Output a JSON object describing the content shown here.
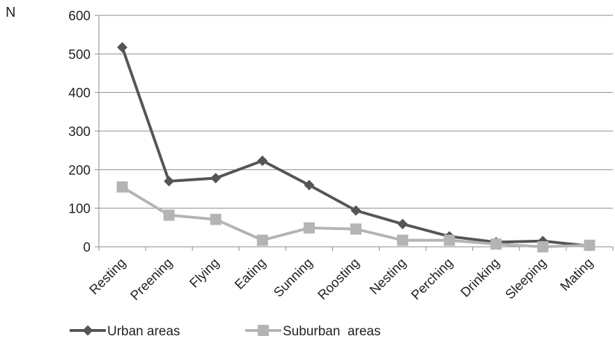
{
  "chart_data": {
    "type": "line",
    "ylabel": "N",
    "xlabel": "",
    "title": "",
    "ylim": [
      0,
      600
    ],
    "yticks": [
      0,
      100,
      200,
      300,
      400,
      500,
      600
    ],
    "grid": true,
    "legend_position": "bottom-left",
    "categories": [
      "Resting",
      "Preening",
      "Flying",
      "Eating",
      "Sunning",
      "Roosting",
      "Nesting",
      "Perching",
      "Drinking",
      "Sleeping",
      "Mating"
    ],
    "series": [
      {
        "name": "Urban areas",
        "marker": "diamond",
        "color": "#555555",
        "values": [
          517,
          170,
          178,
          223,
          160,
          94,
          59,
          27,
          12,
          15,
          2
        ]
      },
      {
        "name": "Suburban  areas",
        "marker": "square",
        "color": "#b4b4b4",
        "values": [
          155,
          82,
          71,
          17,
          49,
          46,
          17,
          17,
          7,
          0,
          4
        ]
      }
    ]
  }
}
